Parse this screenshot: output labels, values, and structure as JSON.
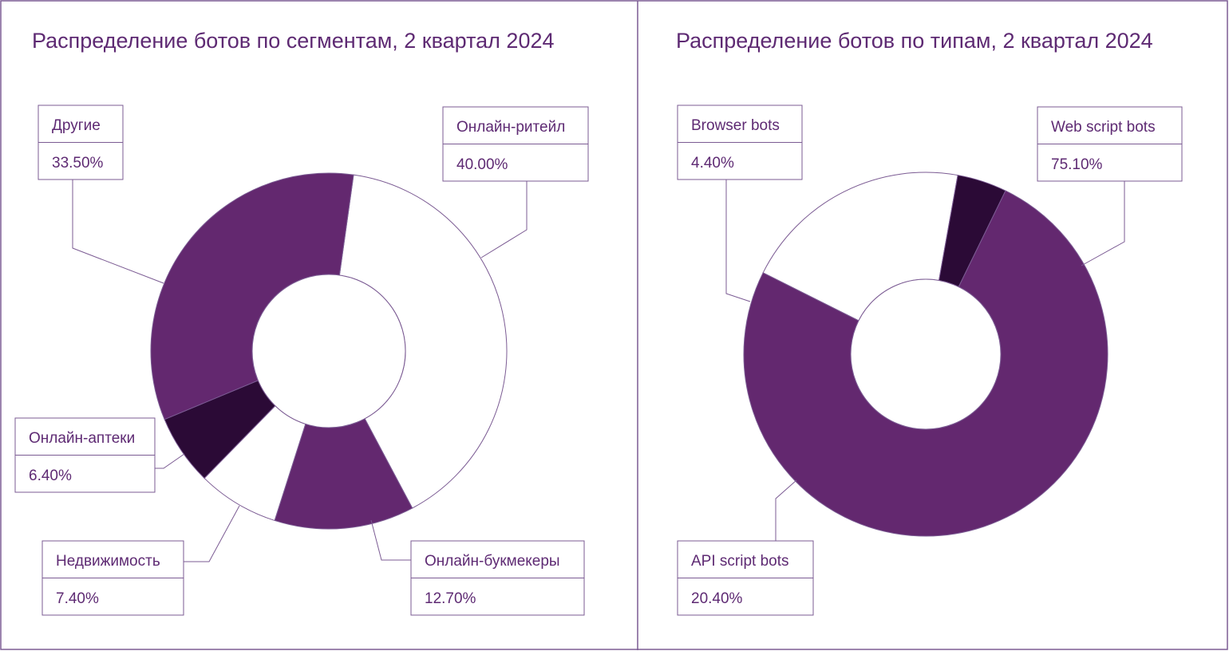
{
  "colors": {
    "purple": "#63286f",
    "dark": "#2b0a36",
    "white": "#ffffff",
    "stroke": "#7b5b93",
    "text": "#5e2a73"
  },
  "chart_data": [
    {
      "type": "pie",
      "variant": "donut",
      "title": "Распределение ботов по сегментам, 2 квартал 2024",
      "categories": [
        "Онлайн-ритейл",
        "Онлайн-букмекеры",
        "Недвижимость",
        "Онлайн-аптеки",
        "Другие"
      ],
      "values": [
        40.0,
        12.7,
        7.4,
        6.4,
        33.5
      ],
      "value_labels": [
        "40.00%",
        "12.70%",
        "7.40%",
        "6.40%",
        "33.50%"
      ],
      "slice_colors": [
        "white",
        "purple",
        "white",
        "dark",
        "purple"
      ]
    },
    {
      "type": "pie",
      "variant": "donut",
      "title": "Распределение ботов по типам, 2 квартал 2024",
      "categories": [
        "Web script bots",
        "API script bots",
        "Browser bots"
      ],
      "values": [
        75.1,
        20.4,
        4.4
      ],
      "value_labels": [
        "75.10%",
        "20.40%",
        "4.40%"
      ],
      "slice_colors": [
        "purple",
        "white",
        "dark"
      ]
    }
  ]
}
